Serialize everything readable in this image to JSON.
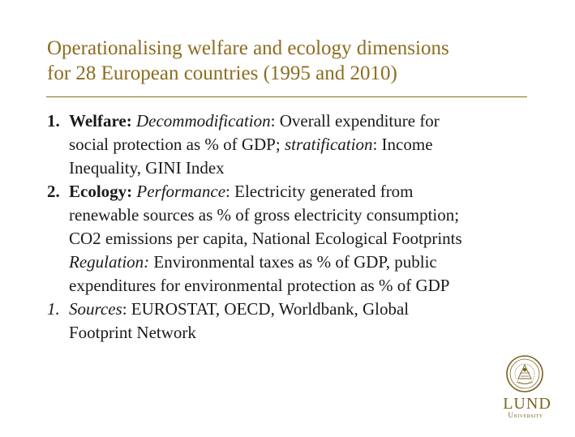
{
  "slide": {
    "title_line1": "Operationalising welfare and ecology dimensions",
    "title_line2": "for 28 European countries (1995 and 2010)"
  },
  "items": [
    {
      "number": "1.",
      "label": "Welfare:",
      "term1": "Decommodification",
      "text1": ": Overall expenditure for",
      "text2": "social protection as % of GDP; ",
      "term2": "stratification",
      "text3": ": Income",
      "text4": "Inequality, GINI Index"
    },
    {
      "number": "2.",
      "label": "Ecology:",
      "term1": "Performance",
      "text1": ": Electricity generated from",
      "text2": "renewable sources as % of gross electricity consumption;",
      "text3": "CO2 emissions per capita, National Ecological Footprints",
      "term2": "Regulation:",
      "text4": " Environmental taxes as % of GDP, public",
      "text5": "expenditures for environmental protection as % of GDP"
    },
    {
      "number": "1.",
      "term1": "Sources",
      "text1": ": EUROSTAT, OECD, Worldbank, Global",
      "text2": "Footprint Network"
    }
  ],
  "logo": {
    "name": "LUND",
    "subtitle": "University",
    "color": "#7a6424",
    "icon": "lund-seal-icon"
  },
  "colors": {
    "title": "#8c6d1f",
    "text": "#1a1a1a",
    "rule": "#8c6d1f"
  }
}
